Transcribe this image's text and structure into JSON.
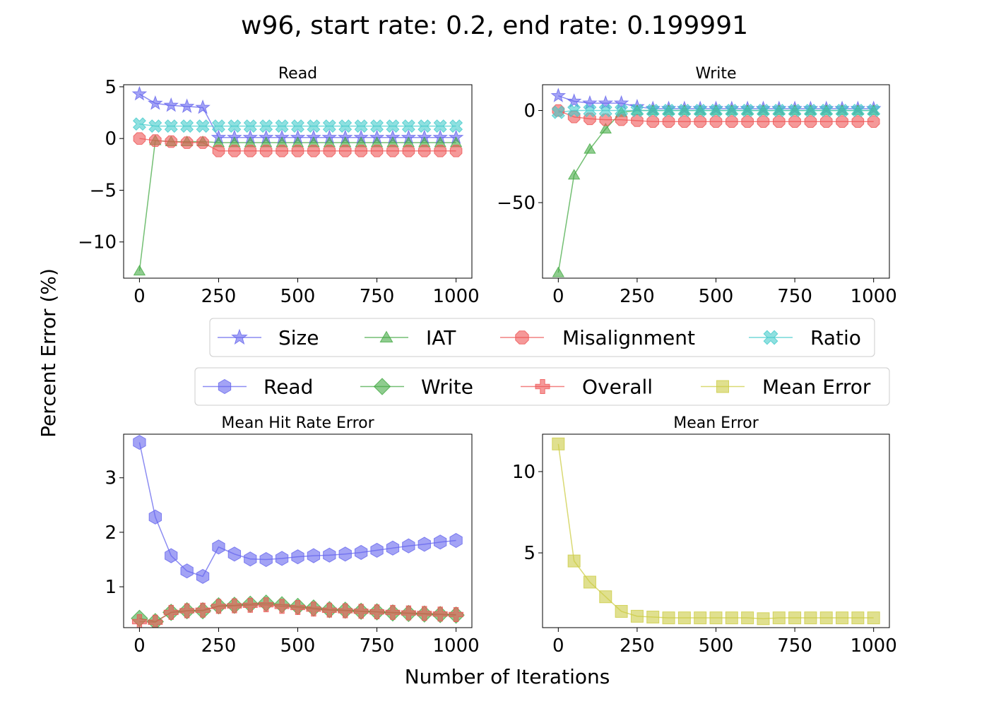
{
  "figure": {
    "suptitle": "w96, start rate: 0.2, end rate: 0.199991",
    "xlabel": "Number of Iterations",
    "ylabel": "Percent Error (%)"
  },
  "legend1": {
    "placement": "center, between top and bottom rows",
    "entries": [
      {
        "label": "Size",
        "color": "#6666ee",
        "marker": "star"
      },
      {
        "label": "IAT",
        "color": "#44aa44",
        "marker": "triangle"
      },
      {
        "label": "Misalignment",
        "color": "#ee5555",
        "marker": "octagon"
      },
      {
        "label": "Ratio",
        "color": "#44cccc",
        "marker": "x"
      }
    ]
  },
  "legend2": {
    "placement": "center, between top and bottom rows",
    "entries": [
      {
        "label": "Read",
        "color": "#6666ee",
        "marker": "hexagon"
      },
      {
        "label": "Write",
        "color": "#44aa44",
        "marker": "diamond"
      },
      {
        "label": "Overall",
        "color": "#ee5555",
        "marker": "plus"
      },
      {
        "label": "Mean Error",
        "color": "#cccc44",
        "marker": "square"
      }
    ]
  },
  "chart_data": [
    {
      "type": "line",
      "title": "Read",
      "xticks": [
        0,
        250,
        500,
        750,
        1000
      ],
      "yticks": [
        5,
        0,
        -5,
        -10
      ],
      "xlim": [
        -50,
        1050
      ],
      "ylim": [
        -13.5,
        5.2
      ],
      "x": [
        0,
        50,
        100,
        150,
        200,
        250,
        300,
        350,
        400,
        450,
        500,
        550,
        600,
        650,
        700,
        750,
        800,
        850,
        900,
        950,
        1000
      ],
      "series": [
        {
          "name": "Size",
          "color": "#6666ee",
          "marker": "star",
          "values": [
            4.3,
            3.4,
            3.2,
            3.1,
            3.0,
            0.1,
            0.1,
            0.1,
            0.1,
            0.1,
            0.1,
            0.1,
            0.1,
            0.1,
            0.1,
            0.1,
            0.1,
            0.1,
            0.1,
            0.1,
            0.1
          ]
        },
        {
          "name": "IAT",
          "color": "#44aa44",
          "marker": "triangle",
          "values": [
            -12.8,
            -0.2,
            -0.3,
            -0.3,
            -0.3,
            -0.4,
            -0.4,
            -0.4,
            -0.4,
            -0.4,
            -0.4,
            -0.4,
            -0.4,
            -0.4,
            -0.4,
            -0.4,
            -0.4,
            -0.4,
            -0.4,
            -0.4,
            -0.4
          ]
        },
        {
          "name": "Misalignment",
          "color": "#ee5555",
          "marker": "octagon",
          "values": [
            0.0,
            -0.2,
            -0.3,
            -0.4,
            -0.4,
            -1.2,
            -1.2,
            -1.2,
            -1.2,
            -1.2,
            -1.2,
            -1.2,
            -1.2,
            -1.2,
            -1.2,
            -1.2,
            -1.2,
            -1.2,
            -1.2,
            -1.2,
            -1.2
          ]
        },
        {
          "name": "Ratio",
          "color": "#44cccc",
          "marker": "x",
          "values": [
            1.4,
            1.2,
            1.2,
            1.2,
            1.2,
            1.2,
            1.2,
            1.2,
            1.2,
            1.2,
            1.2,
            1.2,
            1.2,
            1.2,
            1.2,
            1.2,
            1.2,
            1.2,
            1.2,
            1.2,
            1.2
          ]
        }
      ]
    },
    {
      "type": "line",
      "title": "Write",
      "xticks": [
        0,
        250,
        500,
        750,
        1000
      ],
      "yticks": [
        0,
        -50
      ],
      "xlim": [
        -50,
        1050
      ],
      "ylim": [
        -91,
        14
      ],
      "x": [
        0,
        50,
        100,
        150,
        200,
        250,
        300,
        350,
        400,
        450,
        500,
        550,
        600,
        650,
        700,
        750,
        800,
        850,
        900,
        950,
        1000
      ],
      "series": [
        {
          "name": "Size",
          "color": "#6666ee",
          "marker": "star",
          "values": [
            8,
            5,
            4,
            4,
            4,
            2,
            1,
            1,
            1,
            1,
            1,
            1,
            1,
            1,
            1,
            1,
            1,
            1,
            1,
            1,
            1
          ]
        },
        {
          "name": "IAT",
          "color": "#44aa44",
          "marker": "triangle",
          "values": [
            -88,
            -35,
            -21,
            -10,
            -1,
            0,
            0,
            0,
            0,
            0,
            0,
            0,
            0,
            0,
            0,
            0,
            0,
            0,
            0,
            0,
            0
          ]
        },
        {
          "name": "Misalignment",
          "color": "#ee5555",
          "marker": "octagon",
          "values": [
            0,
            -3.5,
            -4.5,
            -5,
            -5,
            -5.5,
            -6,
            -6,
            -6,
            -6,
            -6,
            -6,
            -6,
            -6,
            -6,
            -6,
            -6,
            -6,
            -6,
            -6,
            -6
          ]
        },
        {
          "name": "Ratio",
          "color": "#44cccc",
          "marker": "x",
          "values": [
            -1,
            0,
            0,
            0,
            0,
            0,
            0,
            0,
            0,
            0,
            0,
            0,
            0,
            0,
            0,
            0,
            0,
            0,
            0,
            0,
            0
          ]
        }
      ]
    },
    {
      "type": "line",
      "title": "Mean Hit Rate Error",
      "xticks": [
        0,
        250,
        500,
        750,
        1000
      ],
      "yticks": [
        3,
        2,
        1
      ],
      "xlim": [
        -50,
        1050
      ],
      "ylim": [
        0.25,
        3.8
      ],
      "x": [
        0,
        50,
        100,
        150,
        200,
        250,
        300,
        350,
        400,
        450,
        500,
        550,
        600,
        650,
        700,
        750,
        800,
        850,
        900,
        950,
        1000
      ],
      "series": [
        {
          "name": "Read",
          "color": "#6666ee",
          "marker": "hexagon",
          "values": [
            3.65,
            2.28,
            1.57,
            1.29,
            1.19,
            1.73,
            1.6,
            1.51,
            1.5,
            1.52,
            1.55,
            1.57,
            1.58,
            1.6,
            1.63,
            1.67,
            1.71,
            1.75,
            1.78,
            1.82,
            1.85
          ]
        },
        {
          "name": "Write",
          "color": "#44aa44",
          "marker": "diamond",
          "values": [
            0.42,
            0.36,
            0.53,
            0.56,
            0.56,
            0.65,
            0.66,
            0.68,
            0.7,
            0.67,
            0.64,
            0.61,
            0.58,
            0.57,
            0.55,
            0.54,
            0.52,
            0.51,
            0.5,
            0.49,
            0.48
          ]
        },
        {
          "name": "Overall",
          "color": "#ee5555",
          "marker": "plus",
          "values": [
            0.36,
            0.35,
            0.53,
            0.56,
            0.57,
            0.64,
            0.65,
            0.66,
            0.67,
            0.64,
            0.62,
            0.59,
            0.57,
            0.56,
            0.55,
            0.54,
            0.53,
            0.52,
            0.51,
            0.5,
            0.49
          ]
        }
      ]
    },
    {
      "type": "line",
      "title": "Mean Error",
      "xticks": [
        0,
        250,
        500,
        750,
        1000
      ],
      "yticks": [
        10,
        5
      ],
      "xlim": [
        -50,
        1050
      ],
      "ylim": [
        0.4,
        12.3
      ],
      "x": [
        0,
        50,
        100,
        150,
        200,
        250,
        300,
        350,
        400,
        450,
        500,
        550,
        600,
        650,
        700,
        750,
        800,
        850,
        900,
        950,
        1000
      ],
      "series": [
        {
          "name": "Mean Error",
          "color": "#cccc44",
          "marker": "square",
          "values": [
            11.7,
            4.5,
            3.2,
            2.3,
            1.4,
            1.1,
            1.05,
            1.0,
            1.0,
            1.0,
            1.0,
            1.0,
            1.0,
            0.95,
            1.0,
            1.0,
            1.0,
            1.0,
            1.0,
            1.0,
            1.0
          ]
        }
      ]
    }
  ]
}
